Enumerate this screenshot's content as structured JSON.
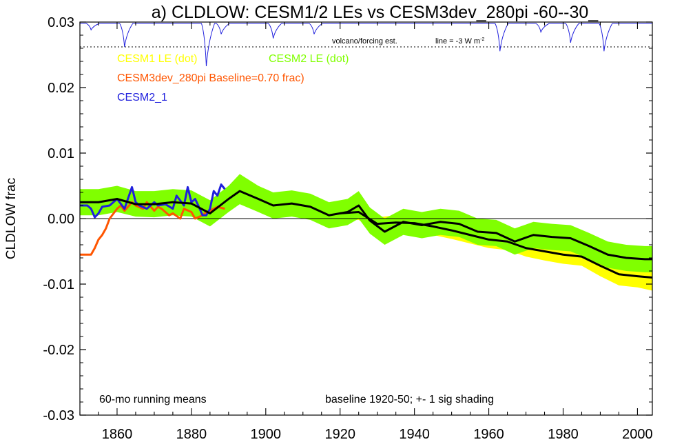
{
  "chart_data": {
    "type": "line",
    "title": "a) CLDLOW: CESM1/2 LEs vs CESM3dev_280pi -60--30_",
    "ylabel": "CLDLOW frac",
    "xlabel": "",
    "xlim": [
      1850,
      2004
    ],
    "ylim": [
      -0.03,
      0.03
    ],
    "x_ticks": [
      1860,
      1880,
      1900,
      1920,
      1940,
      1960,
      1980,
      2000
    ],
    "y_ticks": [
      -0.03,
      -0.02,
      -0.01,
      0.0,
      0.01,
      0.02,
      0.03
    ],
    "y_tick_labels": [
      "-0.03",
      "-0.02",
      "-0.01",
      "0.00",
      "0.01",
      "0.02",
      "0.03"
    ],
    "zero_line": true,
    "grid": false,
    "legend": [
      {
        "label": "CESM1 LE (dot)",
        "color": "#ffff00"
      },
      {
        "label": "CESM2 LE (dot)",
        "color": "#80ff00"
      },
      {
        "label": "CESM3dev_280pi Baseline=0.70 frac)",
        "color": "#ff5500"
      },
      {
        "label": "CESM2_1",
        "color": "#2020dd"
      }
    ],
    "annotations": {
      "volcano": "volcano/forcing est.",
      "line_label": "line = -3 W m",
      "line_label_sup": "-2",
      "running_mean": "60-mo running means",
      "baseline": "baseline 1920-50; +- 1 sig shading"
    },
    "series": [
      {
        "name": "CESM1 LE",
        "color": "#ffff00",
        "shading": "band",
        "x": [
          1920,
          1925,
          1930,
          1935,
          1940,
          1945,
          1950,
          1955,
          1960,
          1965,
          1970,
          1975,
          1980,
          1985,
          1990,
          1995,
          2000,
          2004
        ],
        "mean": [
          0.0008,
          0.001,
          -0.0008,
          -0.0006,
          -0.0007,
          -0.0012,
          -0.0018,
          -0.0025,
          -0.0032,
          -0.0035,
          -0.0045,
          -0.005,
          -0.0055,
          -0.0058,
          -0.0072,
          -0.0085,
          -0.0088,
          -0.009
        ],
        "lower": [
          -0.0004,
          -0.0002,
          -0.002,
          -0.0019,
          -0.002,
          -0.0025,
          -0.0031,
          -0.0038,
          -0.0045,
          -0.0048,
          -0.0058,
          -0.0064,
          -0.0069,
          -0.0072,
          -0.0088,
          -0.0102,
          -0.0105,
          -0.011
        ],
        "upper": [
          0.0017,
          0.002,
          0.0002,
          0.0005,
          0.0006,
          0.0002,
          -0.0005,
          -0.0011,
          -0.0018,
          -0.0021,
          -0.003,
          -0.0036,
          -0.0041,
          -0.0044,
          -0.0057,
          -0.0069,
          -0.0072,
          -0.0073
        ]
      },
      {
        "name": "CESM2 LE",
        "color": "#80ff00",
        "shading": "band",
        "x": [
          1850,
          1855,
          1860,
          1865,
          1870,
          1875,
          1880,
          1885,
          1890,
          1893,
          1898,
          1902,
          1907,
          1912,
          1917,
          1922,
          1925,
          1928,
          1932,
          1937,
          1942,
          1947,
          1952,
          1957,
          1962,
          1967,
          1972,
          1977,
          1982,
          1987,
          1992,
          1997,
          2002,
          2004
        ],
        "mean": [
          0.0025,
          0.0025,
          0.003,
          0.0022,
          0.0022,
          0.0025,
          0.0023,
          0.0008,
          0.003,
          0.0042,
          0.003,
          0.002,
          0.0023,
          0.0018,
          0.0005,
          0.001,
          0.002,
          -0.0003,
          -0.002,
          -0.0005,
          -0.001,
          -0.0005,
          -0.0008,
          -0.002,
          -0.0022,
          -0.0035,
          -0.0025,
          -0.0028,
          -0.003,
          -0.0042,
          -0.0055,
          -0.006,
          -0.0062,
          -0.0062
        ],
        "lower": [
          0.0005,
          0.0005,
          0.001,
          0.0003,
          0.0002,
          0.0005,
          0.0003,
          -0.0012,
          0.001,
          0.0022,
          0.001,
          0.0,
          0.0003,
          -0.0002,
          -0.0015,
          -0.001,
          0.0,
          -0.0023,
          -0.004,
          -0.0025,
          -0.003,
          -0.0025,
          -0.0028,
          -0.004,
          -0.0042,
          -0.0055,
          -0.0045,
          -0.0048,
          -0.005,
          -0.0062,
          -0.0075,
          -0.008,
          -0.0082,
          -0.0082
        ],
        "upper": [
          0.0045,
          0.0045,
          0.005,
          0.0042,
          0.0042,
          0.0045,
          0.0043,
          0.0028,
          0.005,
          0.0068,
          0.005,
          0.004,
          0.0043,
          0.0038,
          0.0025,
          0.003,
          0.0042,
          0.0017,
          0.0,
          0.0015,
          0.001,
          0.0015,
          0.0012,
          0.0,
          -0.0002,
          -0.0015,
          -0.0005,
          -0.0008,
          -0.001,
          -0.0022,
          -0.0035,
          -0.004,
          -0.0042,
          -0.0042
        ]
      },
      {
        "name": "CESM3dev_280pi",
        "color": "#ff5500",
        "x": [
          1850,
          1853,
          1854,
          1855,
          1856,
          1857,
          1858,
          1860,
          1861,
          1862,
          1864,
          1865,
          1867,
          1868,
          1870,
          1871,
          1872,
          1874,
          1875,
          1877,
          1878,
          1880,
          1881,
          1883,
          1884,
          1885,
          1887,
          1889
        ],
        "y": [
          -0.0055,
          -0.0055,
          -0.0045,
          -0.0032,
          -0.0025,
          -0.0015,
          0.0,
          0.0015,
          0.002,
          0.0012,
          0.0025,
          0.002,
          0.0015,
          0.0025,
          0.0012,
          0.0018,
          0.0015,
          0.0005,
          0.0008,
          0.0,
          0.0015,
          0.001,
          0.0,
          0.0005,
          0.001,
          0.0012,
          0.0018,
          0.0015
        ]
      },
      {
        "name": "CESM2_1",
        "color": "#2020dd",
        "x": [
          1850,
          1852,
          1853,
          1854,
          1855,
          1856,
          1858,
          1860,
          1862,
          1864,
          1865,
          1866,
          1868,
          1870,
          1871,
          1873,
          1875,
          1876,
          1878,
          1879,
          1880,
          1881,
          1882,
          1883,
          1884,
          1885,
          1886,
          1887,
          1888,
          1889
        ],
        "y": [
          0.002,
          0.002,
          0.0015,
          0.0002,
          0.0008,
          0.0018,
          0.002,
          0.003,
          0.0015,
          0.0048,
          0.0025,
          0.002,
          0.0015,
          0.0025,
          0.002,
          0.0022,
          0.0015,
          0.0035,
          0.002,
          0.0048,
          0.0025,
          0.003,
          0.0018,
          0.0005,
          0.0005,
          0.0015,
          0.0042,
          0.0035,
          0.0052,
          0.0045
        ]
      },
      {
        "name": "CESM1 LE ensemble mean",
        "color": "#000000",
        "x": [
          1920,
          1925,
          1930,
          1935,
          1940,
          1945,
          1950,
          1955,
          1960,
          1965,
          1970,
          1975,
          1980,
          1985,
          1990,
          1995,
          2000,
          2004
        ],
        "y": [
          0.0008,
          0.001,
          -0.0008,
          -0.0006,
          -0.0007,
          -0.0012,
          -0.0018,
          -0.0025,
          -0.0032,
          -0.0035,
          -0.0045,
          -0.005,
          -0.0055,
          -0.0058,
          -0.0072,
          -0.0085,
          -0.0088,
          -0.009
        ]
      },
      {
        "name": "CESM2 LE ensemble mean",
        "color": "#000000",
        "x": [
          1850,
          1855,
          1860,
          1865,
          1870,
          1875,
          1880,
          1885,
          1890,
          1893,
          1898,
          1902,
          1907,
          1912,
          1917,
          1922,
          1925,
          1928,
          1932,
          1937,
          1942,
          1947,
          1952,
          1957,
          1962,
          1967,
          1972,
          1977,
          1982,
          1987,
          1992,
          1997,
          2002,
          2004
        ],
        "y": [
          0.0025,
          0.0025,
          0.003,
          0.0022,
          0.0022,
          0.0025,
          0.0023,
          0.0008,
          0.003,
          0.0042,
          0.003,
          0.002,
          0.0023,
          0.0018,
          0.0005,
          0.001,
          0.002,
          -0.0003,
          -0.002,
          -0.0005,
          -0.001,
          -0.0005,
          -0.0008,
          -0.002,
          -0.0022,
          -0.0035,
          -0.0025,
          -0.0028,
          -0.003,
          -0.0042,
          -0.0055,
          -0.006,
          -0.0062,
          -0.0062
        ]
      }
    ],
    "volcanic_forcing": {
      "color": "#2020dd",
      "threshold_line": "dotted",
      "events": [
        {
          "year": 1853,
          "depth": 0.15
        },
        {
          "year": 1862,
          "depth": 0.55
        },
        {
          "year": 1884,
          "depth": 1.0
        },
        {
          "year": 1888,
          "depth": 0.25
        },
        {
          "year": 1902,
          "depth": 0.35
        },
        {
          "year": 1913,
          "depth": 0.25
        },
        {
          "year": 1963,
          "depth": 0.65
        },
        {
          "year": 1974,
          "depth": 0.2
        },
        {
          "year": 1982,
          "depth": 0.45
        },
        {
          "year": 1991,
          "depth": 0.65
        }
      ]
    }
  }
}
